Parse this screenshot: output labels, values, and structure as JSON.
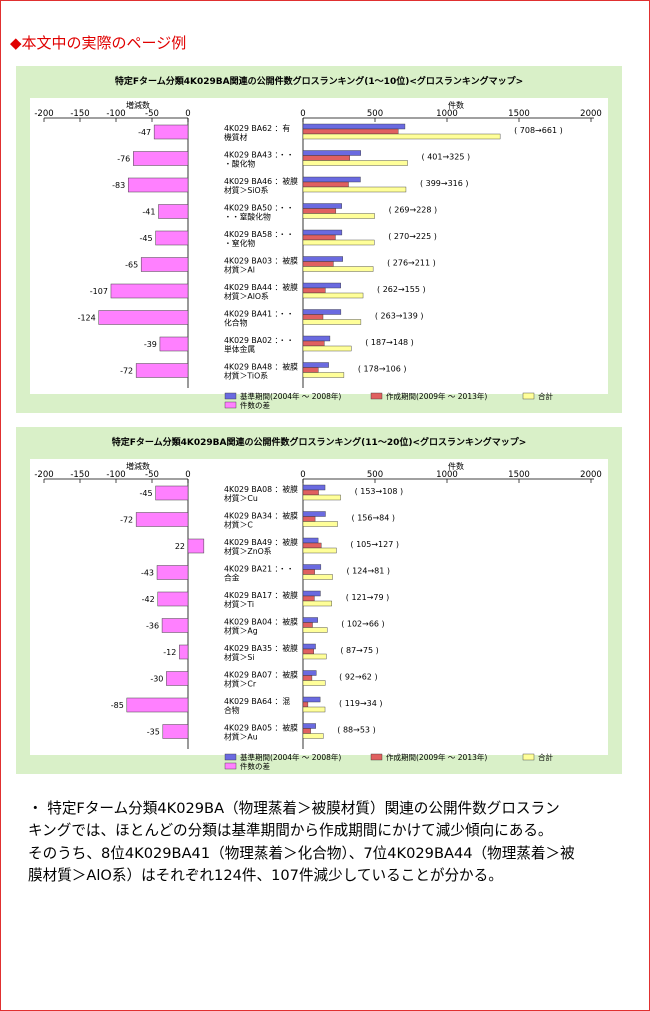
{
  "heading": "◆本文中の実際のページ例",
  "axis_labels": {
    "left_title": "増減数",
    "right_title": "件数",
    "left_ticks": [
      "-200",
      "-150",
      "-100",
      "-50",
      "0"
    ],
    "right_ticks": [
      "0",
      "500",
      "1000",
      "1500",
      "2000"
    ]
  },
  "legend": {
    "base": "基準期間(2004年 ～ 2008年)",
    "created": "作成期間(2009年 ～ 2013年)",
    "total": "合計",
    "diff": "件数の差"
  },
  "colors": {
    "base": "#6a6ae0",
    "created": "#e06060",
    "total": "#ffff99",
    "diff": "#ff80ff",
    "panel_bg": "#d9f0c8"
  },
  "chart_data": [
    {
      "type": "bar",
      "title": "特定Fターム分類4K029BA関連の公開件数グロスランキング(1～10位)<グロスランキングマップ>",
      "left_xlim": [
        -200,
        0
      ],
      "right_xlim": [
        0,
        2000
      ],
      "categories": [
        [
          "4K029 BA62 ：有",
          "機質材"
        ],
        [
          "4K029 BA43 ：・・",
          "・酸化物"
        ],
        [
          "4K029 BA46 ：被膜",
          "材質＞SiO系"
        ],
        [
          "4K029 BA50 ：・・",
          "・・窒酸化物"
        ],
        [
          "4K029 BA58 ：・・",
          "・窒化物"
        ],
        [
          "4K029 BA03 ：被膜",
          "材質＞Al"
        ],
        [
          "4K029 BA44 ：被膜",
          "材質＞AlO系"
        ],
        [
          "4K029 BA41 ：・・",
          "化合物"
        ],
        [
          "4K029 BA02 ：・・",
          "単体金属"
        ],
        [
          "4K029 BA48 ：被膜",
          "材質＞TiO系"
        ]
      ],
      "base": [
        708,
        401,
        399,
        269,
        270,
        276,
        262,
        263,
        187,
        178
      ],
      "created": [
        661,
        325,
        316,
        228,
        225,
        211,
        155,
        139,
        148,
        106
      ],
      "diff": [
        -47,
        -76,
        -83,
        -41,
        -45,
        -65,
        -107,
        -124,
        -39,
        -72
      ],
      "pair_labels": [
        "( 708→661 )",
        "( 401→325 )",
        "( 399→316 )",
        "( 269→228 )",
        "( 270→225 )",
        "( 276→211 )",
        "( 262→155 )",
        "( 263→139 )",
        "( 187→148 )",
        "( 178→106 )"
      ],
      "diff_labels": [
        "-47",
        "-76",
        "-83",
        "-41",
        "-45",
        "-65",
        "-107",
        "-124",
        "-39",
        "-72"
      ]
    },
    {
      "type": "bar",
      "title": "特定Fターム分類4K029BA関連の公開件数グロスランキング(11～20位)<グロスランキングマップ>",
      "left_xlim": [
        -200,
        0
      ],
      "right_xlim": [
        0,
        2000
      ],
      "categories": [
        [
          "4K029 BA08 ：被膜",
          "材質＞Cu"
        ],
        [
          "4K029 BA34 ：被膜",
          "材質＞C"
        ],
        [
          "4K029 BA49 ：被膜",
          "材質＞ZnO系"
        ],
        [
          "4K029 BA21 ：・・",
          "合金"
        ],
        [
          "4K029 BA17 ：被膜",
          "材質＞Ti"
        ],
        [
          "4K029 BA04 ：被膜",
          "材質＞Ag"
        ],
        [
          "4K029 BA35 ：被膜",
          "材質＞Si"
        ],
        [
          "4K029 BA07 ：被膜",
          "材質＞Cr"
        ],
        [
          "4K029 BA64 ：混",
          "合物"
        ],
        [
          "4K029 BA05 ：被膜",
          "材質＞Au"
        ]
      ],
      "base": [
        153,
        156,
        105,
        124,
        121,
        102,
        87,
        92,
        119,
        88
      ],
      "created": [
        108,
        84,
        127,
        81,
        79,
        66,
        75,
        62,
        34,
        53
      ],
      "diff": [
        -45,
        -72,
        22,
        -43,
        -42,
        -36,
        -12,
        -30,
        -85,
        -35
      ],
      "pair_labels": [
        "( 153→108 )",
        "( 156→84 )",
        "( 105→127 )",
        "( 124→81 )",
        "( 121→79 )",
        "( 102→66 )",
        "( 87→75 )",
        "( 92→62 )",
        "( 119→34 )",
        "( 88→53 )"
      ],
      "diff_labels": [
        "-45",
        "-72",
        "22",
        "-43",
        "-42",
        "-36",
        "-12",
        "-30",
        "-85",
        "-35"
      ]
    }
  ],
  "paragraph": [
    "・ 特定Fターム分類4K029BA（物理蒸着＞被膜材質）関連の公開件数グロスラン",
    "キングでは、ほとんどの分類は基準期間から作成期間にかけて減少傾向にある。",
    "そのうち、8位4K029BA41（物理蒸着＞化合物）、7位4K029BA44（物理蒸着＞被",
    "膜材質＞AlO系）はそれぞれ124件、107件減少していることが分かる。"
  ]
}
